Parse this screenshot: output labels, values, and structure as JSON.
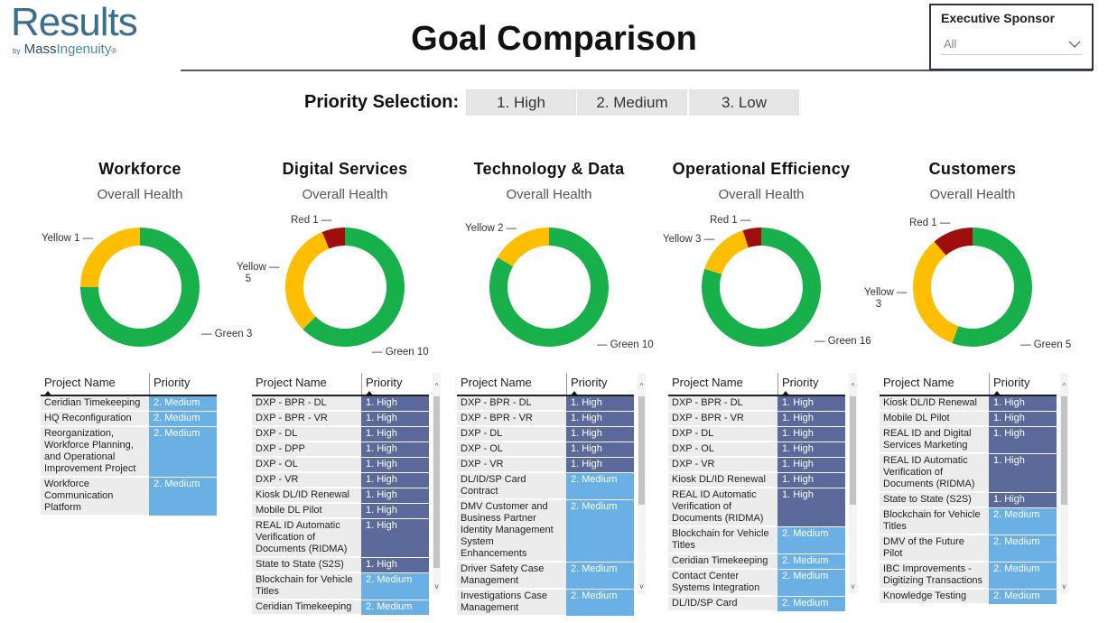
{
  "logo": {
    "word": "Results",
    "by": "by",
    "mass": "Mass",
    "ingenuity": "Ingenuity",
    "reg": "®"
  },
  "title": "Goal Comparison",
  "sponsor": {
    "label": "Executive Sponsor",
    "value": "All"
  },
  "priority": {
    "label": "Priority Selection:",
    "options": [
      "1. High",
      "2. Medium",
      "3. Low"
    ]
  },
  "colors": {
    "green": "#18b04b",
    "yellow": "#ffbf00",
    "red": "#a00d0d",
    "high": "#5b6a9a",
    "medium": "#6ab0e4"
  },
  "table_headers": {
    "name": "Project Name",
    "priority": "Priority"
  },
  "columns": [
    {
      "title": "Workforce",
      "subtitle": "Overall Health",
      "chart_data": {
        "type": "pie",
        "title": "Overall Health",
        "categories": [
          "Green",
          "Yellow"
        ],
        "values": [
          3,
          1
        ]
      },
      "labels": {
        "yellow": "Yellow 1",
        "green": "Green 3"
      },
      "rows": [
        {
          "name": "Ceridian Timekeeping",
          "priority": "2. Medium"
        },
        {
          "name": "HQ Reconfiguration",
          "priority": "2. Medium"
        },
        {
          "name": "Reorganization, Workforce Planning, and Operational Improvement Project",
          "priority": "2. Medium"
        },
        {
          "name": "Workforce Communication Platform",
          "priority": "2. Medium"
        }
      ]
    },
    {
      "title": "Digital Services",
      "subtitle": "Overall Health",
      "chart_data": {
        "type": "pie",
        "title": "Overall Health",
        "categories": [
          "Green",
          "Yellow",
          "Red"
        ],
        "values": [
          10,
          5,
          1
        ]
      },
      "labels": {
        "red": "Red 1",
        "yellow": "Yellow 5",
        "green": "Green 10"
      },
      "rows": [
        {
          "name": "DXP - BPR - DL",
          "priority": "1. High"
        },
        {
          "name": "DXP - BPR - VR",
          "priority": "1. High"
        },
        {
          "name": "DXP - DL",
          "priority": "1. High"
        },
        {
          "name": "DXP - DPP",
          "priority": "1. High"
        },
        {
          "name": "DXP - OL",
          "priority": "1. High"
        },
        {
          "name": "DXP - VR",
          "priority": "1. High"
        },
        {
          "name": "Kiosk DL/ID Renewal",
          "priority": "1. High"
        },
        {
          "name": "Mobile DL Pilot",
          "priority": "1. High"
        },
        {
          "name": "REAL ID Automatic Verification of Documents (RIDMA)",
          "priority": "1. High"
        },
        {
          "name": "State to State (S2S)",
          "priority": "1. High"
        },
        {
          "name": "Blockchain for Vehicle Titles",
          "priority": "2. Medium"
        },
        {
          "name": "Ceridian Timekeeping",
          "priority": "2. Medium"
        }
      ]
    },
    {
      "title": "Technology & Data",
      "subtitle": "Overall Health",
      "chart_data": {
        "type": "pie",
        "title": "Overall Health",
        "categories": [
          "Green",
          "Yellow"
        ],
        "values": [
          10,
          2
        ]
      },
      "labels": {
        "yellow": "Yellow 2",
        "green": "Green 10"
      },
      "rows": [
        {
          "name": "DXP - BPR - DL",
          "priority": "1. High"
        },
        {
          "name": "DXP - BPR - VR",
          "priority": "1. High"
        },
        {
          "name": "DXP - DL",
          "priority": "1. High"
        },
        {
          "name": "DXP - OL",
          "priority": "1. High"
        },
        {
          "name": "DXP - VR",
          "priority": "1. High"
        },
        {
          "name": "DL/ID/SP Card Contract",
          "priority": "2. Medium"
        },
        {
          "name": "DMV Customer and Business Partner Identity Management System Enhancements",
          "priority": "2. Medium"
        },
        {
          "name": "Driver Safety Case Management",
          "priority": "2. Medium"
        },
        {
          "name": "Investigations Case Management",
          "priority": "2. Medium"
        }
      ]
    },
    {
      "title": "Operational Efficiency",
      "subtitle": "Overall Health",
      "chart_data": {
        "type": "pie",
        "title": "Overall Health",
        "categories": [
          "Green",
          "Yellow",
          "Red"
        ],
        "values": [
          16,
          3,
          1
        ]
      },
      "labels": {
        "red": "Red 1",
        "yellow": "Yellow 3",
        "green": "Green 16"
      },
      "rows": [
        {
          "name": "DXP - BPR - DL",
          "priority": "1. High"
        },
        {
          "name": "DXP - BPR - VR",
          "priority": "1. High"
        },
        {
          "name": "DXP - DL",
          "priority": "1. High"
        },
        {
          "name": "DXP - OL",
          "priority": "1. High"
        },
        {
          "name": "DXP - VR",
          "priority": "1. High"
        },
        {
          "name": "Kiosk DL/ID Renewal",
          "priority": "1. High"
        },
        {
          "name": "REAL ID Automatic Verification of Documents (RIDMA)",
          "priority": "1. High"
        },
        {
          "name": "Blockchain for Vehicle Titles",
          "priority": "2. Medium"
        },
        {
          "name": "Ceridian Timekeeping",
          "priority": "2. Medium"
        },
        {
          "name": "Contact Center Systems Integration",
          "priority": "2. Medium"
        },
        {
          "name": "DL/ID/SP Card",
          "priority": "2. Medium"
        }
      ]
    },
    {
      "title": "Customers",
      "subtitle": "Overall Health",
      "chart_data": {
        "type": "pie",
        "title": "Overall Health",
        "categories": [
          "Green",
          "Yellow",
          "Red"
        ],
        "values": [
          5,
          3,
          1
        ]
      },
      "labels": {
        "red": "Red 1",
        "yellow": "Yellow 3",
        "green": "Green 5"
      },
      "rows": [
        {
          "name": "Kiosk DL/ID Renewal",
          "priority": "1. High"
        },
        {
          "name": "Mobile DL Pilot",
          "priority": "1. High"
        },
        {
          "name": "REAL ID and Digital Services Marketing",
          "priority": "1. High"
        },
        {
          "name": "REAL ID Automatic Verification of Documents (RIDMA)",
          "priority": "1. High"
        },
        {
          "name": "State to State (S2S)",
          "priority": "1. High"
        },
        {
          "name": "Blockchain for Vehicle Titles",
          "priority": "2. Medium"
        },
        {
          "name": "DMV of the Future Pilot",
          "priority": "2. Medium"
        },
        {
          "name": "IBC Improvements - Digitizing Transactions",
          "priority": "2. Medium"
        },
        {
          "name": "Knowledge Testing",
          "priority": "2. Medium"
        }
      ]
    }
  ]
}
